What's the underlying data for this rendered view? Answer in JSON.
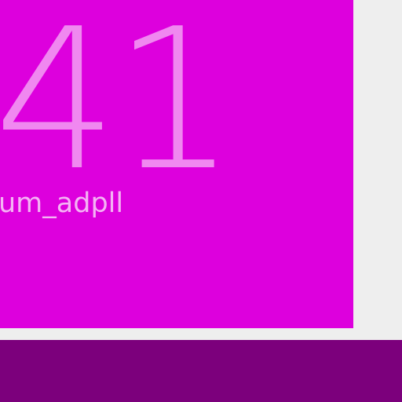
{
  "card": {
    "number": "41",
    "label": "um_adpll"
  },
  "colors": {
    "background": "#eeeeee",
    "card": "#dd00dd",
    "number_text": "#f088f0",
    "label_text": "#f4b4f4",
    "bottom_bar": "#7c007c"
  }
}
